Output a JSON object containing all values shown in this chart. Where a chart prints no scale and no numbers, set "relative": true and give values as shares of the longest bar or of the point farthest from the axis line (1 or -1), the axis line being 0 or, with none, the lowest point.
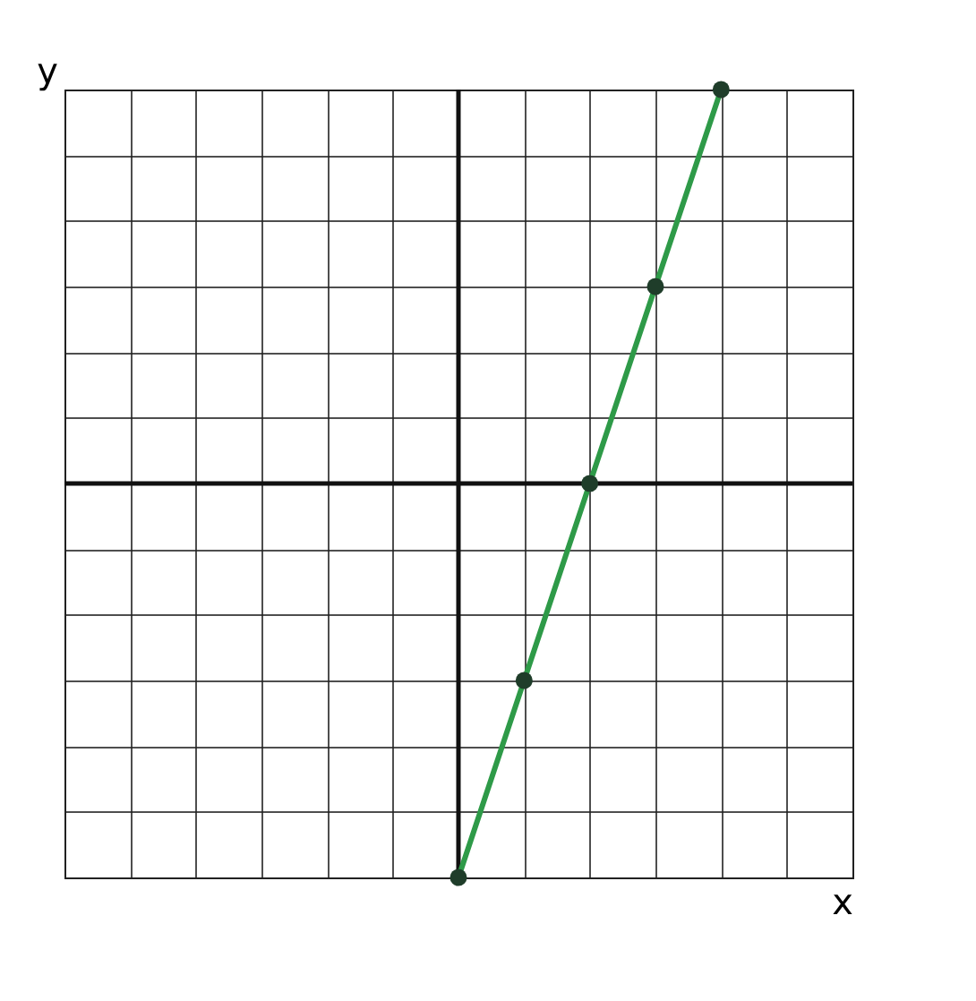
{
  "chart_data": {
    "type": "line",
    "xlabel": "x",
    "ylabel": "y",
    "relative": true,
    "grid": true,
    "marker": "circle",
    "categories": [
      null,
      null,
      null,
      null,
      null,
      null,
      null,
      null,
      null,
      null,
      null,
      null,
      null
    ],
    "series": [
      {
        "color": "#2e9a48",
        "values": [
          null,
          null,
          null,
          null,
          null,
          null,
          -1,
          -0.5,
          0,
          0.5,
          1,
          null,
          null
        ]
      }
    ]
  }
}
